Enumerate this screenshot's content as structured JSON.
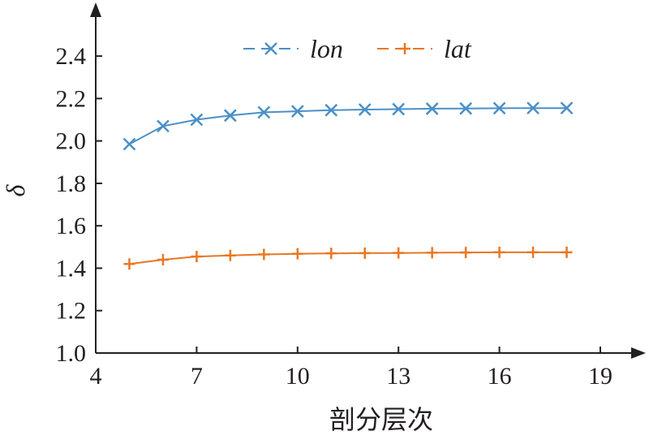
{
  "chart_data": {
    "type": "line",
    "xlabel": "剖分层次",
    "ylabel": "δ",
    "xlim": [
      4,
      19
    ],
    "ylim": [
      1.0,
      2.5
    ],
    "xticks": [
      4,
      7,
      10,
      13,
      16,
      19
    ],
    "xtick_labels": [
      "4",
      "7",
      "10",
      "13",
      "16",
      "19"
    ],
    "yticks": [
      1.0,
      1.2,
      1.4,
      1.6,
      1.8,
      2.0,
      2.2,
      2.4
    ],
    "ytick_labels": [
      "1.0",
      "1.2",
      "1.4",
      "1.6",
      "1.8",
      "2.0",
      "2.2",
      "2.4"
    ],
    "grid": false,
    "legend_position": "top",
    "x": [
      5,
      6,
      7,
      8,
      9,
      10,
      11,
      12,
      13,
      14,
      15,
      16,
      17,
      18
    ],
    "series": [
      {
        "name": "lon",
        "marker": "x",
        "color": "#4a90c8",
        "values": [
          1.985,
          2.07,
          2.1,
          2.12,
          2.135,
          2.14,
          2.145,
          2.148,
          2.15,
          2.152,
          2.153,
          2.154,
          2.155,
          2.155
        ]
      },
      {
        "name": "lat",
        "marker": "+",
        "color": "#e87722",
        "values": [
          1.42,
          1.44,
          1.455,
          1.46,
          1.465,
          1.468,
          1.47,
          1.471,
          1.472,
          1.473,
          1.474,
          1.475,
          1.475,
          1.475
        ]
      }
    ]
  }
}
